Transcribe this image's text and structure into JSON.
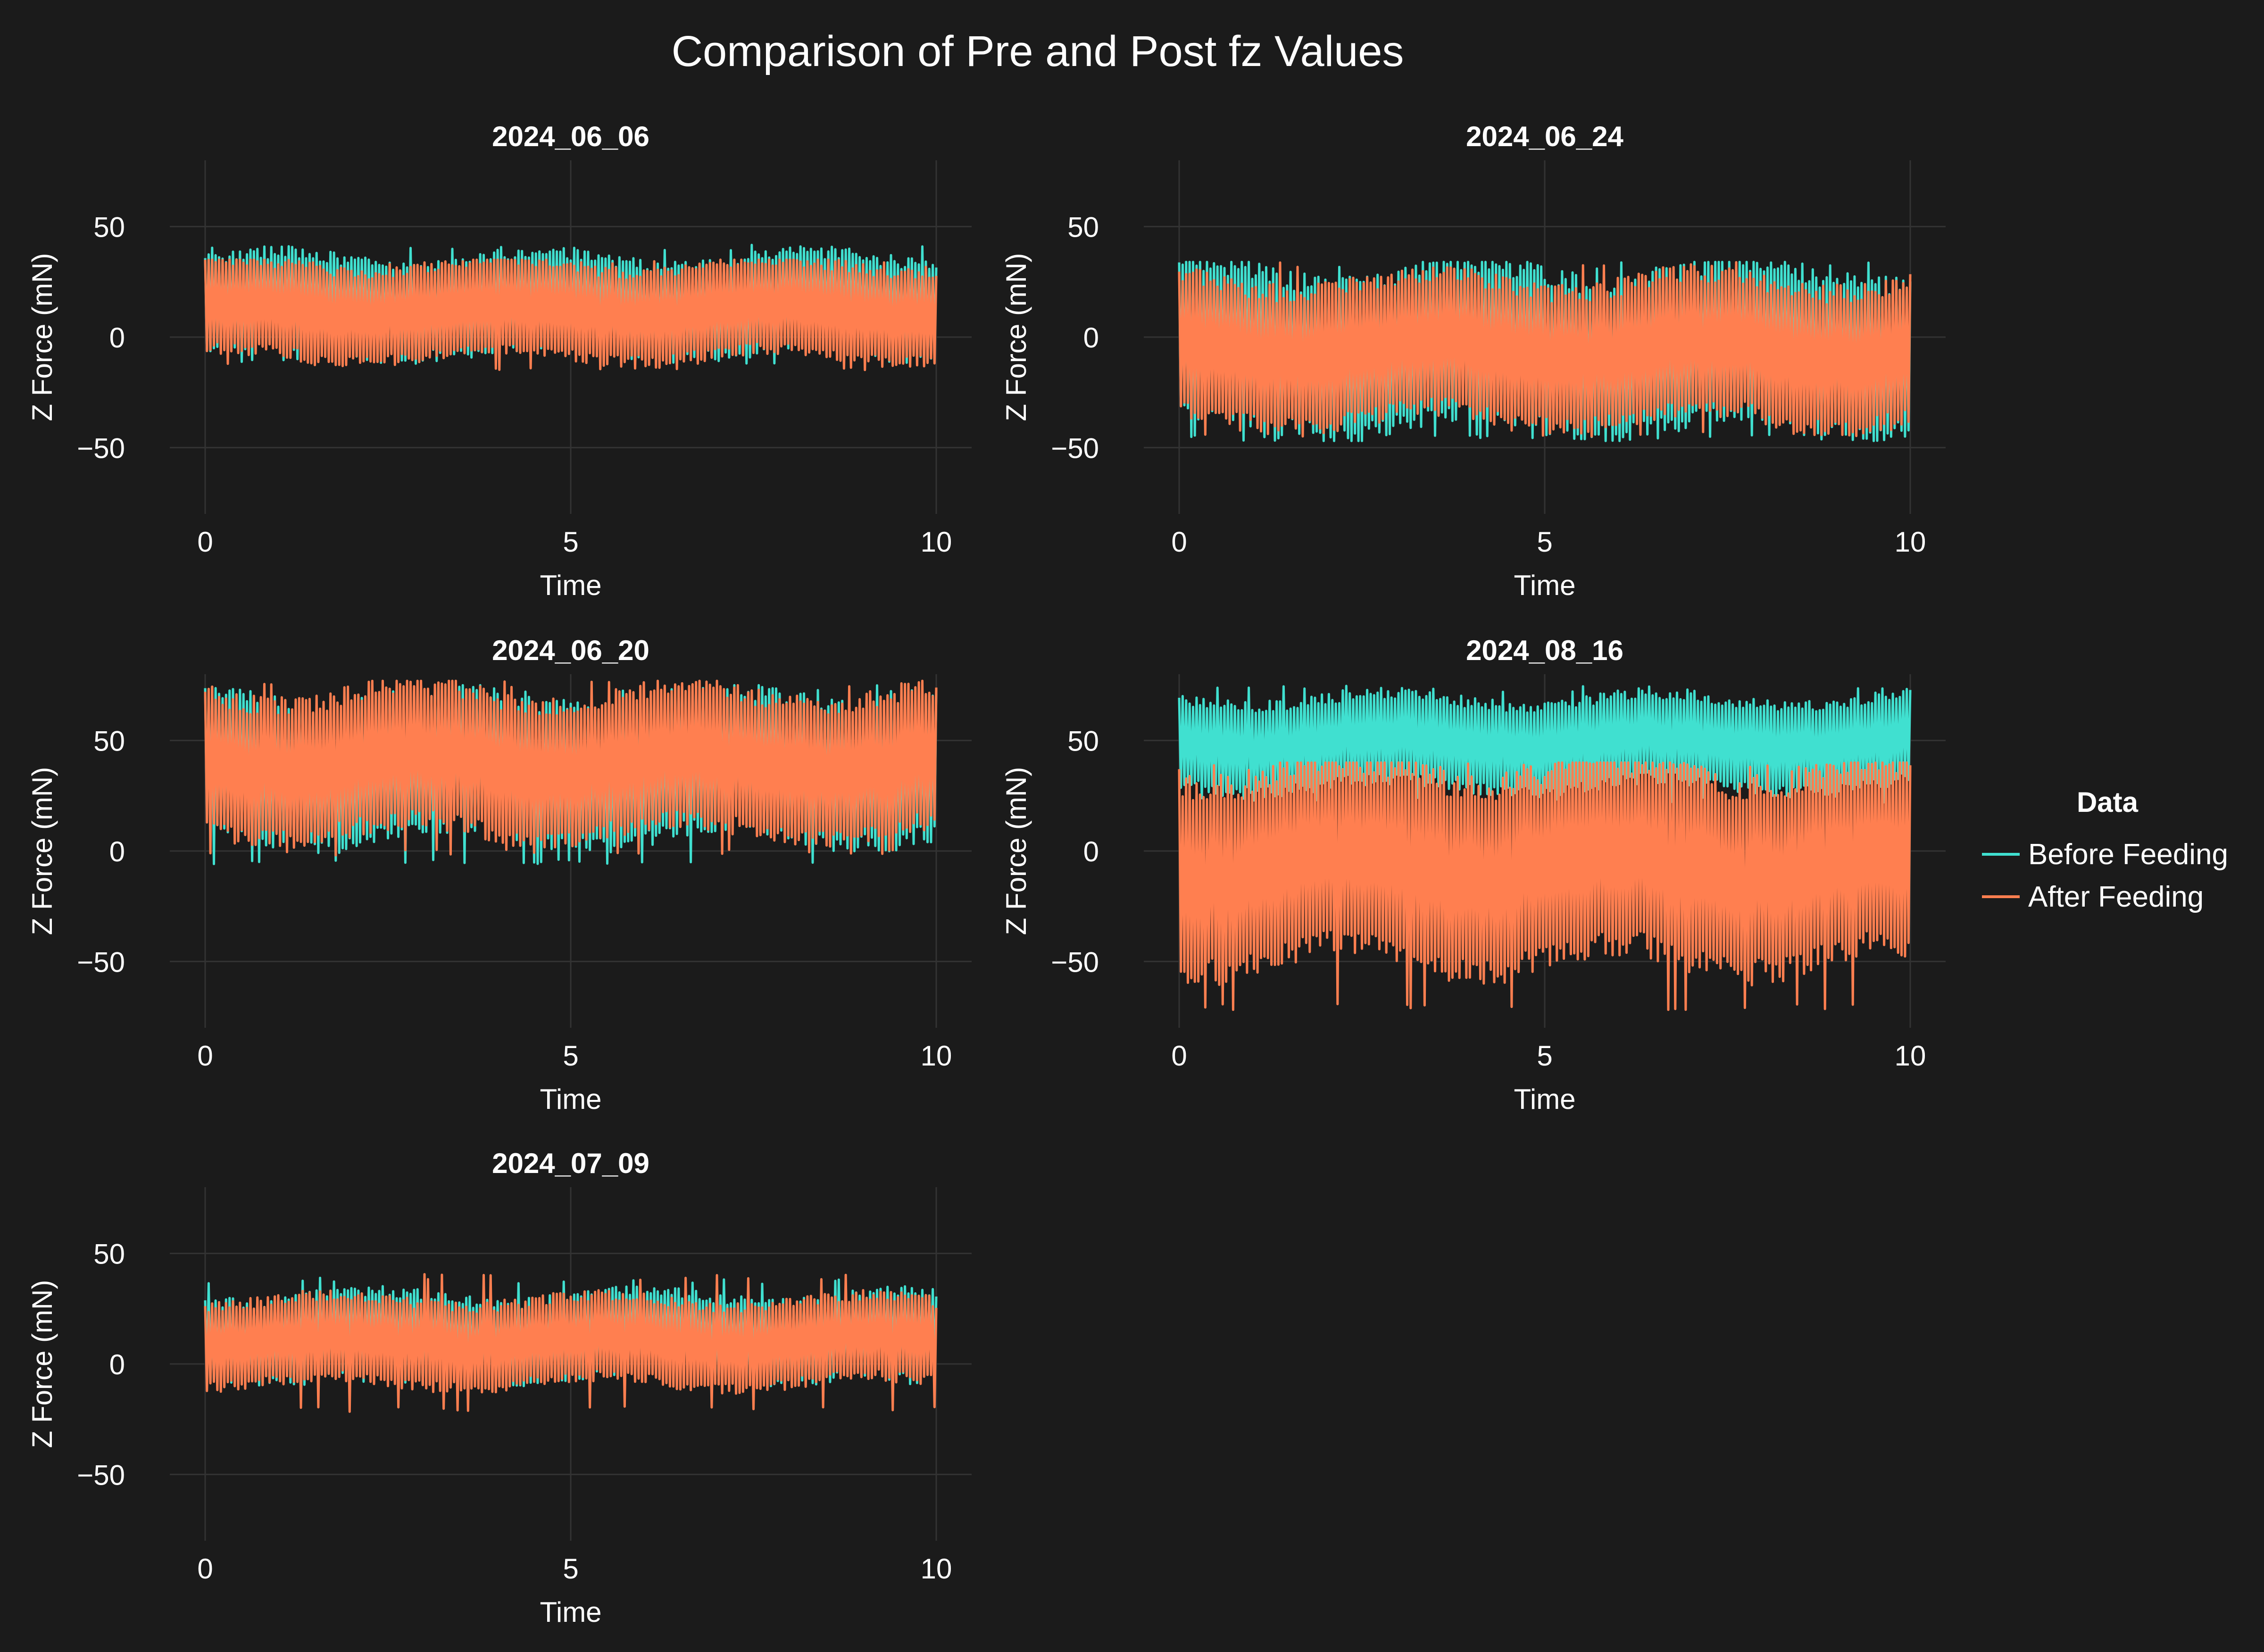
{
  "title": "Comparison of Pre and Post fz Values",
  "legend": {
    "title": "Data",
    "placement": "right",
    "entries": [
      {
        "name": "Before Feeding",
        "color": "#40e0d0"
      },
      {
        "name": "After Feeding",
        "color": "#ff7f50"
      }
    ]
  },
  "colors": {
    "background": "#1b1b1b",
    "grid": "#333333",
    "text": "#ffffff",
    "before": "#40e0d0",
    "after": "#ff7f50"
  },
  "chart_data": [
    {
      "type": "line",
      "title": "2024_06_06",
      "xlabel": "Time",
      "ylabel": "Z Force (mN)",
      "xlim": [
        0,
        10
      ],
      "ylim": [
        -80,
        80
      ],
      "xticks": [
        0,
        5,
        10
      ],
      "yticks": [
        50,
        0,
        -50
      ],
      "grid": true,
      "series": [
        {
          "name": "Before Feeding",
          "band_low": -6,
          "band_high": 35,
          "min": -12,
          "max": 42
        },
        {
          "name": "After Feeding",
          "band_low": -8,
          "band_high": 32,
          "min": -15,
          "max": 35
        }
      ]
    },
    {
      "type": "line",
      "title": "2024_06_24",
      "xlabel": "Time",
      "ylabel": "Z Force (mN)",
      "xlim": [
        0,
        10
      ],
      "ylim": [
        -80,
        80
      ],
      "xticks": [
        0,
        5,
        10
      ],
      "yticks": [
        50,
        0,
        -50
      ],
      "grid": true,
      "series": [
        {
          "name": "Before Feeding",
          "band_low": -38,
          "band_high": 28,
          "min": -47,
          "max": 34
        },
        {
          "name": "After Feeding",
          "band_low": -36,
          "band_high": 24,
          "min": -45,
          "max": 34
        }
      ]
    },
    {
      "type": "line",
      "title": "2024_06_20",
      "xlabel": "Time",
      "ylabel": "Z Force (mN)",
      "xlim": [
        0,
        10
      ],
      "ylim": [
        -80,
        80
      ],
      "xticks": [
        0,
        5,
        10
      ],
      "yticks": [
        50,
        0,
        -50
      ],
      "grid": true,
      "series": [
        {
          "name": "Before Feeding",
          "band_low": 8,
          "band_high": 68,
          "min": -6,
          "max": 75
        },
        {
          "name": "After Feeding",
          "band_low": 10,
          "band_high": 70,
          "min": -2,
          "max": 77
        }
      ]
    },
    {
      "type": "line",
      "title": "2024_08_16",
      "xlabel": "Time",
      "ylabel": "Z Force (mN)",
      "xlim": [
        0,
        10
      ],
      "ylim": [
        -80,
        80
      ],
      "xticks": [
        0,
        5,
        10
      ],
      "yticks": [
        50,
        0,
        -50
      ],
      "grid": true,
      "series": [
        {
          "name": "Before Feeding",
          "band_low": 30,
          "band_high": 68,
          "min": 22,
          "max": 75
        },
        {
          "name": "After Feeding",
          "band_low": -48,
          "band_high": 35,
          "min": -72,
          "max": 40
        }
      ]
    },
    {
      "type": "line",
      "title": "2024_07_09",
      "xlabel": "Time",
      "ylabel": "Z Force (mN)",
      "xlim": [
        0,
        10
      ],
      "ylim": [
        -80,
        80
      ],
      "xticks": [
        0,
        5,
        10
      ],
      "yticks": [
        50,
        0,
        -50
      ],
      "grid": true,
      "series": [
        {
          "name": "Before Feeding",
          "band_low": -5,
          "band_high": 30,
          "min": -10,
          "max": 39
        },
        {
          "name": "After Feeding",
          "band_low": -8,
          "band_high": 28,
          "min": -22,
          "max": 41
        }
      ]
    }
  ]
}
